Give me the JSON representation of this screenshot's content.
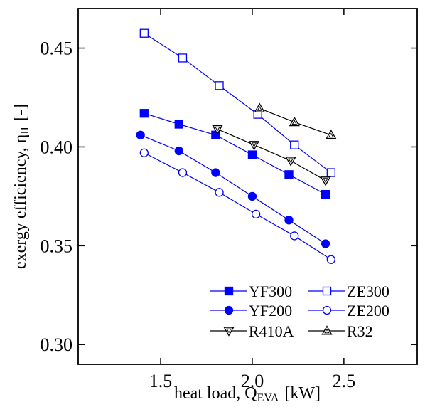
{
  "chart_data": {
    "type": "line",
    "xlabel": "heat load,  Q",
    "xlabel_sub": "EVA",
    "xlabel_unit": "[kW]",
    "ylabel": "exergy efficiency,  η",
    "ylabel_sub": "II",
    "ylabel_unit": "[-]",
    "xlim": [
      1.05,
      2.9
    ],
    "ylim": [
      0.29,
      0.47
    ],
    "xticks": [
      1.5,
      2.0,
      2.5
    ],
    "xtick_labels": [
      "1.5",
      "2.0",
      "2.5"
    ],
    "yticks": [
      0.3,
      0.35,
      0.4,
      0.45
    ],
    "ytick_labels": [
      "0.30",
      "0.35",
      "0.40",
      "0.45"
    ],
    "grid": false,
    "legend_position": "bottom-right",
    "series": [
      {
        "name": "YF300",
        "color": "#0000ff",
        "marker": "square",
        "filled": true,
        "x": [
          1.41,
          1.6,
          1.8,
          2.0,
          2.2,
          2.4
        ],
        "y": [
          0.417,
          0.4115,
          0.406,
          0.396,
          0.386,
          0.376
        ]
      },
      {
        "name": "ZE300",
        "color": "#0000ff",
        "marker": "square",
        "filled": false,
        "x": [
          1.41,
          1.62,
          1.82,
          2.03,
          2.23,
          2.43
        ],
        "y": [
          0.4575,
          0.445,
          0.431,
          0.4165,
          0.401,
          0.387
        ]
      },
      {
        "name": "YF200",
        "color": "#0000ff",
        "marker": "circle",
        "filled": true,
        "x": [
          1.39,
          1.6,
          1.8,
          2.0,
          2.2,
          2.4
        ],
        "y": [
          0.406,
          0.398,
          0.387,
          0.375,
          0.363,
          0.351
        ]
      },
      {
        "name": "ZE200",
        "color": "#0000ff",
        "marker": "circle",
        "filled": false,
        "x": [
          1.41,
          1.62,
          1.82,
          2.02,
          2.23,
          2.43
        ],
        "y": [
          0.397,
          0.387,
          0.377,
          0.366,
          0.355,
          0.343
        ]
      },
      {
        "name": "R410A",
        "color": "#000000",
        "marker": "triangle-down",
        "filled": false,
        "x": [
          1.81,
          2.01,
          2.21,
          2.4
        ],
        "y": [
          0.409,
          0.401,
          0.393,
          0.383
        ]
      },
      {
        "name": "R32",
        "color": "#000000",
        "marker": "triangle-up",
        "filled": false,
        "x": [
          2.04,
          2.23,
          2.43
        ],
        "y": [
          0.4195,
          0.4125,
          0.406
        ]
      }
    ]
  }
}
